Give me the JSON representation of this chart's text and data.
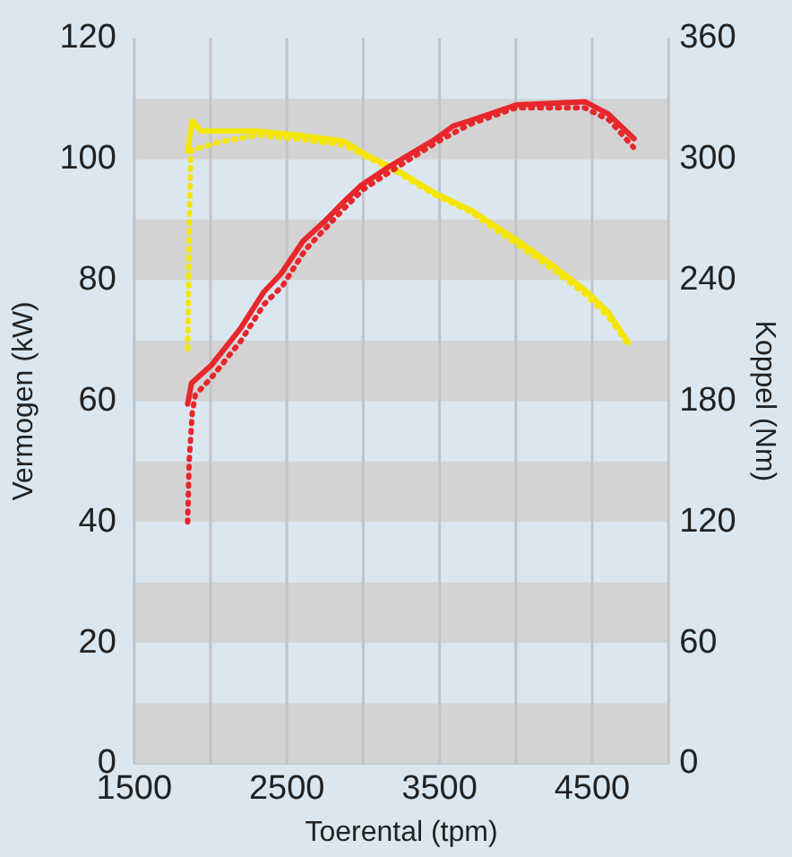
{
  "chart_data": {
    "type": "line",
    "xlabel": "Toerental (tpm)",
    "ylabel": "Vermogen (kW)",
    "y2label": "Koppel (Nm)",
    "xlim": [
      1500,
      5000
    ],
    "xticks": [
      1500,
      {
        "value": 2000,
        "label": null
      },
      2500,
      {
        "value": 3000,
        "label": null
      },
      3500,
      {
        "value": 4000,
        "label": null
      },
      4500,
      {
        "value": 5000,
        "label": null
      }
    ],
    "ylim": [
      0,
      120
    ],
    "yticks": [
      0,
      20,
      40,
      60,
      80,
      100,
      120
    ],
    "y2lim": [
      0,
      360
    ],
    "y2ticks": [
      0,
      60,
      120,
      180,
      240,
      300,
      360
    ],
    "grid": "x",
    "legend": false,
    "marker": "none",
    "bands": [
      {
        "axis": "y",
        "from": 0,
        "to": 10,
        "color": "#d3d3d3"
      },
      {
        "axis": "y",
        "from": 20,
        "to": 30,
        "color": "#d3d3d3"
      },
      {
        "axis": "y",
        "from": 40,
        "to": 50,
        "color": "#d3d3d3"
      },
      {
        "axis": "y",
        "from": 60,
        "to": 70,
        "color": "#d3d3d3"
      },
      {
        "axis": "y",
        "from": 80,
        "to": 90,
        "color": "#d3d3d3"
      },
      {
        "axis": "y",
        "from": 100,
        "to": 110,
        "color": "#d3d3d3"
      }
    ],
    "series": [
      {
        "color": "#e8262b",
        "axis": "y",
        "line_style": "solid",
        "x": [
          1850,
          1876,
          2008,
          2196,
          2347,
          2460,
          2607,
          2742,
          2874,
          2987,
          3171,
          3476,
          3589,
          3701,
          4003,
          4455,
          4605,
          4774
        ],
        "values": [
          59.5,
          63,
          66,
          72,
          78,
          81,
          86.5,
          89.6,
          93,
          95.7,
          98.8,
          103.4,
          105.5,
          106.4,
          109,
          109.5,
          107.5,
          103.4
        ]
      },
      {
        "color": "#e8262b",
        "axis": "y",
        "line_style": "dotted",
        "x": [
          1850,
          1860,
          1880,
          1900,
          2010,
          2200,
          2350,
          2470,
          2620,
          2750,
          2880,
          3000,
          3180,
          3480,
          3700,
          4000,
          4450,
          4610,
          4770
        ],
        "values": [
          40,
          50,
          58,
          61,
          64,
          70,
          76,
          79,
          85,
          88.5,
          92,
          95,
          98,
          102.8,
          105.8,
          108.5,
          108.5,
          106.5,
          102
        ]
      },
      {
        "color": "#f5e600",
        "axis": "y2",
        "line_style": "solid",
        "x": [
          1850,
          1880,
          1940,
          2309,
          2572,
          2874,
          3024,
          3212,
          3476,
          3701,
          4003,
          4229,
          4455,
          4605,
          4737
        ],
        "values": [
          304,
          319,
          314,
          314,
          312,
          309,
          302,
          295,
          283,
          275,
          260,
          248,
          235,
          224,
          209
        ]
      },
      {
        "color": "#f5e600",
        "axis": "y2",
        "line_style": "dotted",
        "x": [
          1850,
          1860,
          1870,
          1895,
          2083,
          2309,
          2572,
          2874,
          3024,
          3212,
          3476,
          3701,
          4003,
          4229,
          4455,
          4605,
          4737
        ],
        "values": [
          206,
          260,
          304,
          305,
          309,
          312,
          310,
          307,
          301,
          294,
          282,
          274,
          258,
          246,
          233,
          222,
          208
        ]
      }
    ]
  }
}
